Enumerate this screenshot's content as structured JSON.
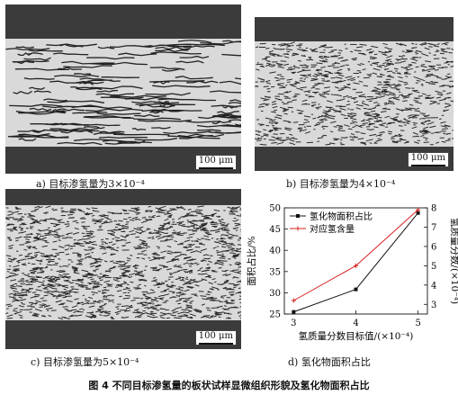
{
  "panels": [
    {
      "caption": "a) 目标渗氢量为3×10⁻⁴",
      "scale": "100 μm"
    },
    {
      "caption": "b) 目标渗氢量为4×10⁻⁴",
      "scale": "100 μm"
    },
    {
      "caption": "c) 目标渗氢量为5×10⁻⁴",
      "scale": "100 μm"
    },
    {
      "caption": "d) 氢化物面积占比"
    }
  ],
  "figure_caption": "图 4   不同目标渗氢量的板状试样显微组织形貌及氢化物面积占比",
  "chart_data": {
    "type": "line",
    "x": [
      3,
      4,
      5
    ],
    "xticks": [
      "3",
      "4",
      "5"
    ],
    "xlabel": "氢质量分数目标值/(×10⁻⁴)",
    "ylabel_left": "面积占比/%",
    "ylabel_right": "氢质量分数/(×10⁻⁴)",
    "ylim_left": [
      25,
      50
    ],
    "yticks_left": [
      "25",
      "30",
      "35",
      "40",
      "45",
      "50"
    ],
    "ylim_right": [
      2.5,
      8
    ],
    "yticks_right": [
      "3",
      "4",
      "5",
      "6",
      "7",
      "8"
    ],
    "series": [
      {
        "name": "氢化物面积占比",
        "axis": "left",
        "color": "#111111",
        "values": [
          25.5,
          30.8,
          48.8
        ]
      },
      {
        "name": "对应氢含量",
        "axis": "right",
        "color": "#d62020",
        "values": [
          3.2,
          5.0,
          7.9
        ]
      }
    ],
    "legend": "top-left"
  }
}
